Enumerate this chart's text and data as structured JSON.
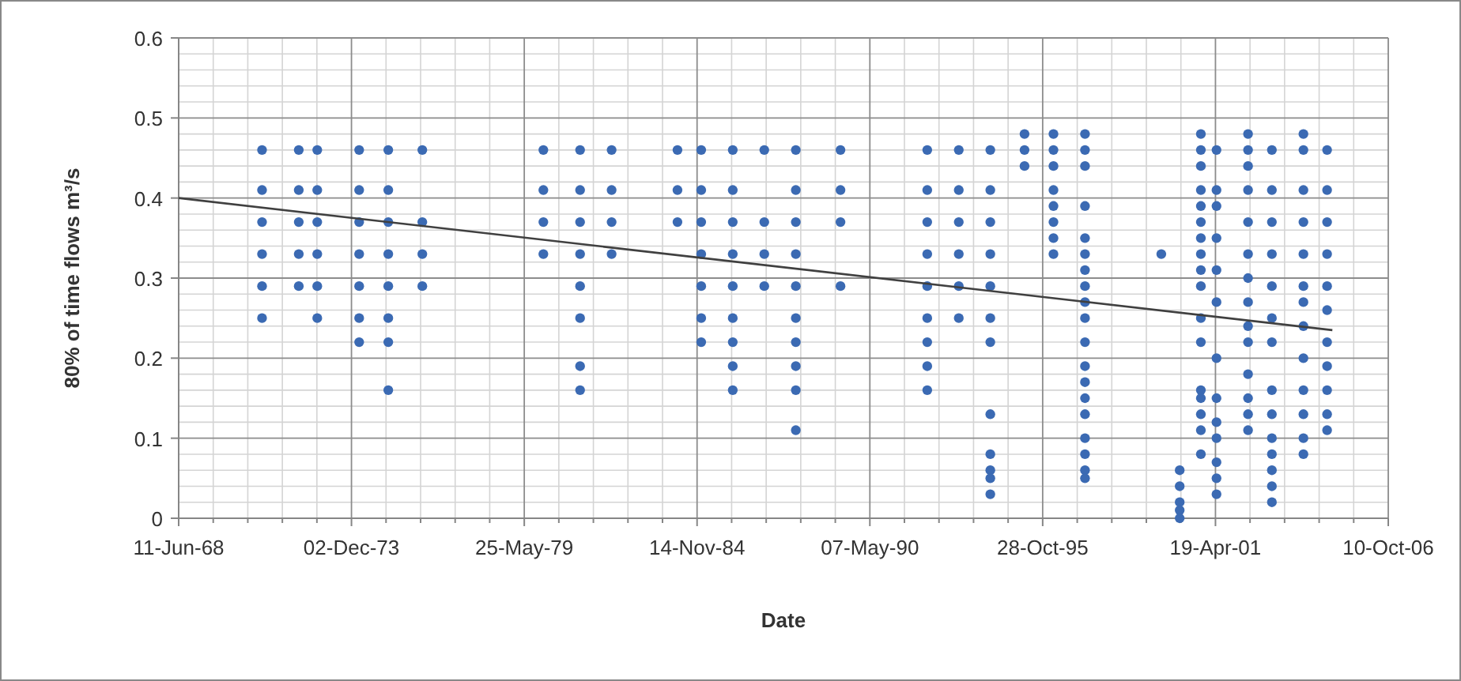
{
  "chart_data": {
    "type": "scatter",
    "xlabel": "Date",
    "ylabel": "80% of time flows m³/s",
    "xlim": [
      "1968-06-11",
      "2006-10-10"
    ],
    "xticks": [
      {
        "value": "1968-06-11",
        "label": "11-Jun-68"
      },
      {
        "value": "1973-12-02",
        "label": "02-Dec-73"
      },
      {
        "value": "1979-05-25",
        "label": "25-May-79"
      },
      {
        "value": "1984-11-14",
        "label": "14-Nov-84"
      },
      {
        "value": "1990-05-07",
        "label": "07-May-90"
      },
      {
        "value": "1995-10-28",
        "label": "28-Oct-95"
      },
      {
        "value": "2001-04-19",
        "label": "19-Apr-01"
      },
      {
        "value": "2006-10-10",
        "label": "10-Oct-06"
      }
    ],
    "ylim": [
      0,
      0.6
    ],
    "yticks": [
      0,
      0.1,
      0.2,
      0.3,
      0.4,
      0.5,
      0.6
    ],
    "grid": true,
    "marker": "circle",
    "series": [
      {
        "color": "#3b6ab3",
        "x": [
          "1971-02",
          "1971-02",
          "1971-02",
          "1971-02",
          "1971-02",
          "1971-02",
          "1972-04",
          "1972-04",
          "1972-04",
          "1972-04",
          "1972-04",
          "1972-11",
          "1972-11",
          "1972-11",
          "1972-11",
          "1972-11",
          "1972-11",
          "1974-03",
          "1974-03",
          "1974-03",
          "1974-03",
          "1974-03",
          "1974-03",
          "1974-03",
          "1975-02",
          "1975-02",
          "1975-02",
          "1975-02",
          "1975-02",
          "1975-02",
          "1975-02",
          "1975-02",
          "1976-03",
          "1976-03",
          "1976-03",
          "1976-03",
          "1980-01",
          "1980-01",
          "1980-01",
          "1980-01",
          "1981-03",
          "1981-03",
          "1981-03",
          "1981-03",
          "1981-03",
          "1981-03",
          "1981-03",
          "1981-03",
          "1982-03",
          "1982-03",
          "1982-03",
          "1982-03",
          "1984-04",
          "1984-04",
          "1984-04",
          "1985-01",
          "1985-01",
          "1985-01",
          "1985-01",
          "1985-01",
          "1985-01",
          "1985-01",
          "1986-01",
          "1986-01",
          "1986-01",
          "1986-01",
          "1986-01",
          "1986-01",
          "1986-01",
          "1986-01",
          "1986-01",
          "1987-01",
          "1987-01",
          "1987-01",
          "1987-01",
          "1988-01",
          "1988-01",
          "1988-01",
          "1988-01",
          "1988-01",
          "1988-01",
          "1988-01",
          "1988-01",
          "1988-01",
          "1988-01",
          "1989-06",
          "1989-06",
          "1989-06",
          "1989-06",
          "1992-03",
          "1992-03",
          "1992-03",
          "1992-03",
          "1992-03",
          "1992-03",
          "1992-03",
          "1992-03",
          "1992-03",
          "1993-03",
          "1993-03",
          "1993-03",
          "1993-03",
          "1993-03",
          "1993-03",
          "1994-03",
          "1994-03",
          "1994-03",
          "1994-03",
          "1994-03",
          "1994-03",
          "1994-03",
          "1994-03",
          "1994-03",
          "1994-03",
          "1994-03",
          "1994-03",
          "1995-04",
          "1995-04",
          "1995-04",
          "1996-03",
          "1996-03",
          "1996-03",
          "1996-03",
          "1996-03",
          "1996-03",
          "1996-03",
          "1996-03",
          "1997-03",
          "1997-03",
          "1997-03",
          "1997-03",
          "1997-03",
          "1997-03",
          "1997-03",
          "1997-03",
          "1997-03",
          "1997-03",
          "1997-03",
          "1997-03",
          "1997-03",
          "1997-03",
          "1997-03",
          "1997-03",
          "1997-03",
          "1997-03",
          "1997-03",
          "1999-08",
          "2000-03",
          "2000-03",
          "2000-03",
          "2000-03",
          "2000-03",
          "2000-11",
          "2000-11",
          "2000-11",
          "2000-11",
          "2000-11",
          "2000-11",
          "2000-11",
          "2000-11",
          "2000-11",
          "2000-11",
          "2000-11",
          "2000-11",
          "2000-11",
          "2000-11",
          "2000-11",
          "2000-11",
          "2000-11",
          "2001-05",
          "2001-05",
          "2001-05",
          "2001-05",
          "2001-05",
          "2001-05",
          "2001-05",
          "2001-05",
          "2001-05",
          "2001-05",
          "2001-05",
          "2001-05",
          "2001-05",
          "2002-05",
          "2002-05",
          "2002-05",
          "2002-05",
          "2002-05",
          "2002-05",
          "2002-05",
          "2002-05",
          "2002-05",
          "2002-05",
          "2002-05",
          "2002-05",
          "2002-05",
          "2002-05",
          "2003-02",
          "2003-02",
          "2003-02",
          "2003-02",
          "2003-02",
          "2003-02",
          "2003-02",
          "2003-02",
          "2003-02",
          "2003-02",
          "2003-02",
          "2003-02",
          "2003-02",
          "2003-02",
          "2004-02",
          "2004-02",
          "2004-02",
          "2004-02",
          "2004-02",
          "2004-02",
          "2004-02",
          "2004-02",
          "2004-02",
          "2004-02",
          "2004-02",
          "2004-02",
          "2004-02",
          "2004-11",
          "2004-11",
          "2004-11",
          "2004-11",
          "2004-11",
          "2004-11",
          "2004-11",
          "2004-11",
          "2004-11",
          "2004-11",
          "2004-11"
        ],
        "values": [
          0.46,
          0.41,
          0.37,
          0.33,
          0.29,
          0.25,
          0.46,
          0.41,
          0.37,
          0.33,
          0.29,
          0.46,
          0.41,
          0.37,
          0.33,
          0.29,
          0.25,
          0.46,
          0.41,
          0.37,
          0.33,
          0.29,
          0.25,
          0.22,
          0.46,
          0.41,
          0.37,
          0.33,
          0.29,
          0.25,
          0.22,
          0.16,
          0.46,
          0.37,
          0.33,
          0.29,
          0.46,
          0.41,
          0.37,
          0.33,
          0.46,
          0.41,
          0.37,
          0.33,
          0.29,
          0.25,
          0.19,
          0.16,
          0.46,
          0.41,
          0.37,
          0.33,
          0.46,
          0.41,
          0.37,
          0.46,
          0.41,
          0.37,
          0.33,
          0.29,
          0.25,
          0.22,
          0.46,
          0.41,
          0.37,
          0.33,
          0.29,
          0.25,
          0.22,
          0.19,
          0.16,
          0.46,
          0.37,
          0.33,
          0.29,
          0.46,
          0.41,
          0.37,
          0.33,
          0.29,
          0.25,
          0.22,
          0.19,
          0.16,
          0.11,
          0.46,
          0.41,
          0.37,
          0.29,
          0.46,
          0.41,
          0.37,
          0.33,
          0.29,
          0.25,
          0.22,
          0.19,
          0.16,
          0.46,
          0.41,
          0.37,
          0.33,
          0.29,
          0.25,
          0.46,
          0.41,
          0.37,
          0.33,
          0.29,
          0.25,
          0.22,
          0.13,
          0.08,
          0.06,
          0.05,
          0.03,
          0.48,
          0.46,
          0.44,
          0.48,
          0.46,
          0.44,
          0.41,
          0.39,
          0.37,
          0.35,
          0.33,
          0.48,
          0.46,
          0.44,
          0.39,
          0.35,
          0.33,
          0.31,
          0.29,
          0.27,
          0.25,
          0.22,
          0.19,
          0.17,
          0.15,
          0.13,
          0.1,
          0.08,
          0.06,
          0.05,
          0.33,
          0.06,
          0.04,
          0.02,
          0.01,
          0,
          0.48,
          0.46,
          0.44,
          0.41,
          0.39,
          0.37,
          0.35,
          0.33,
          0.31,
          0.29,
          0.25,
          0.22,
          0.16,
          0.15,
          0.13,
          0.11,
          0.08,
          0.46,
          0.41,
          0.39,
          0.35,
          0.31,
          0.27,
          0.2,
          0.15,
          0.12,
          0.1,
          0.07,
          0.05,
          0.03,
          0.48,
          0.46,
          0.44,
          0.41,
          0.37,
          0.33,
          0.3,
          0.27,
          0.24,
          0.22,
          0.18,
          0.15,
          0.13,
          0.11,
          0.46,
          0.41,
          0.37,
          0.33,
          0.29,
          0.25,
          0.22,
          0.16,
          0.13,
          0.1,
          0.08,
          0.06,
          0.04,
          0.02,
          0.48,
          0.46,
          0.41,
          0.37,
          0.33,
          0.29,
          0.27,
          0.24,
          0.2,
          0.16,
          0.13,
          0.1,
          0.08,
          0.46,
          0.41,
          0.37,
          0.33,
          0.29,
          0.26,
          0.22,
          0.19,
          0.16,
          0.13,
          0.11
        ]
      },
      {
        "type": "line",
        "color": "#404040",
        "marker": "none",
        "x": [
          "1968-06-11",
          "2005-01"
        ],
        "values": [
          0.4,
          0.235
        ]
      }
    ]
  }
}
